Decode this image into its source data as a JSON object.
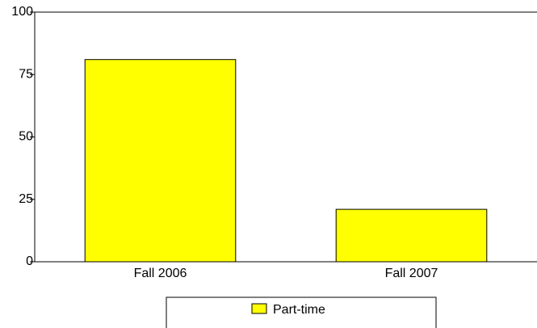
{
  "chart_data": {
    "type": "bar",
    "categories": [
      "Fall 2006",
      "Fall 2007"
    ],
    "series": [
      {
        "name": "Part-time",
        "color": "#ffff00",
        "values": [
          81,
          21
        ]
      }
    ],
    "ylim": [
      0,
      100
    ],
    "yticks": [
      0,
      25,
      50,
      75,
      100
    ],
    "grid": false,
    "legend": "bottom"
  }
}
